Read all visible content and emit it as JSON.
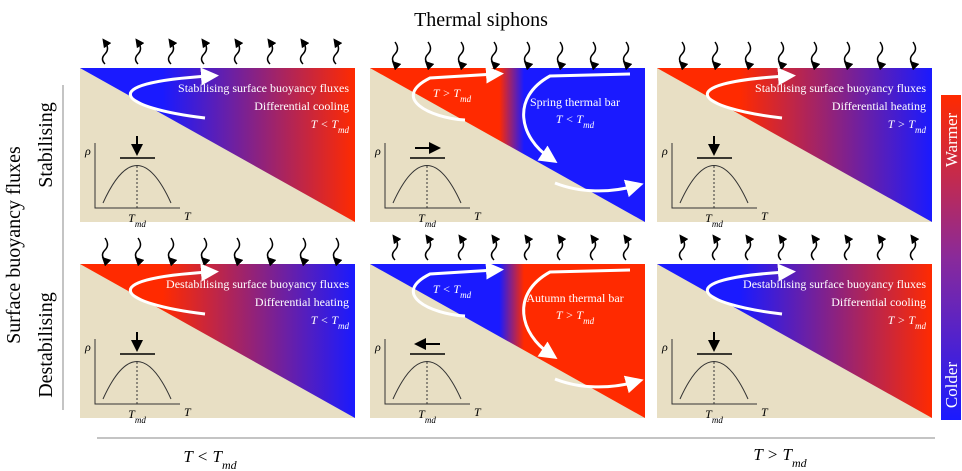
{
  "title": "Thermal siphons",
  "y_axis_label": "Surface buoyancy fluxes",
  "rows": [
    "Stabilising",
    "Destabilising"
  ],
  "colorbar": {
    "top": "Warmer",
    "bottom": "Colder"
  },
  "x_axis": {
    "left": {
      "text": "T < T",
      "sub": "md"
    },
    "right": {
      "text": "T > T",
      "sub": "md"
    }
  },
  "inset": {
    "y": "ρ",
    "x": "T",
    "tick": {
      "text": "T",
      "sub": "md"
    }
  },
  "panels": [
    {
      "label1": "Stabilising surface buoyancy fluxes",
      "label2": "Differential cooling",
      "condition": {
        "text": "T < T",
        "sub": "md"
      }
    },
    {
      "label1": "Spring thermal bar",
      "condition": {
        "text": "T < T",
        "sub": "md"
      },
      "left_condition": {
        "text": "T > T",
        "sub": "md"
      }
    },
    {
      "label1": "Stabilising surface buoyancy fluxes",
      "label2": "Differential heating",
      "condition": {
        "text": "T > T",
        "sub": "md"
      }
    },
    {
      "label1": "Destabilising surface buoyancy fluxes",
      "label2": "Differential heating",
      "condition": {
        "text": "T < T",
        "sub": "md"
      }
    },
    {
      "label1": "Autumn thermal bar",
      "condition": {
        "text": "T > T",
        "sub": "md"
      },
      "left_condition": {
        "text": "T < T",
        "sub": "md"
      }
    },
    {
      "label1": "Destabilising surface buoyancy fluxes",
      "label2": "Differential cooling",
      "condition": {
        "text": "T > T",
        "sub": "md"
      }
    }
  ]
}
